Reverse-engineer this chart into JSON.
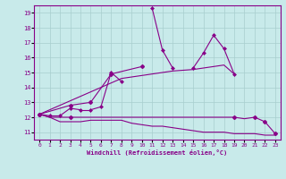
{
  "xlabel": "Windchill (Refroidissement éolien,°C)",
  "background_color": "#c8eaea",
  "grid_color": "#a8cece",
  "line_color": "#880088",
  "x_ticks": [
    0,
    1,
    2,
    3,
    4,
    5,
    6,
    7,
    8,
    9,
    10,
    11,
    12,
    13,
    14,
    15,
    16,
    17,
    18,
    19,
    20,
    21,
    22,
    23
  ],
  "y_ticks": [
    11,
    12,
    13,
    14,
    15,
    16,
    17,
    18,
    19
  ],
  "ylim": [
    10.5,
    19.5
  ],
  "xlim": [
    -0.5,
    23.5
  ],
  "series_main": [
    12.2,
    12.1,
    12.1,
    12.6,
    12.5,
    12.5,
    12.7,
    15.0,
    14.4,
    null,
    null,
    19.3,
    16.5,
    15.3,
    null,
    15.3,
    16.3,
    17.5,
    16.6,
    14.9,
    null,
    null,
    null,
    null
  ],
  "series_upper": [
    12.2,
    null,
    null,
    12.8,
    null,
    13.0,
    null,
    14.9,
    null,
    null,
    15.4,
    null,
    null,
    null,
    null,
    null,
    null,
    null,
    null,
    null,
    null,
    null,
    null,
    null
  ],
  "series_max_env": [
    null,
    null,
    null,
    null,
    null,
    null,
    null,
    null,
    null,
    null,
    null,
    null,
    null,
    null,
    null,
    null,
    17.0,
    17.5,
    null,
    null,
    null,
    null,
    null,
    null
  ],
  "series_trend_up": [
    12.2,
    12.5,
    12.8,
    13.1,
    13.4,
    13.7,
    14.0,
    14.3,
    14.6,
    14.7,
    14.8,
    14.9,
    15.0,
    15.1,
    15.15,
    15.2,
    15.3,
    15.4,
    15.5,
    14.9,
    null,
    null,
    null,
    null
  ],
  "series_trend_down": [
    12.2,
    12.0,
    11.7,
    11.7,
    11.7,
    11.8,
    11.8,
    11.8,
    11.8,
    11.6,
    11.5,
    11.4,
    11.4,
    11.3,
    11.2,
    11.1,
    11.0,
    11.0,
    11.0,
    10.9,
    10.9,
    10.9,
    10.8,
    10.8
  ],
  "series_mid": [
    12.2,
    12.0,
    12.0,
    12.0,
    12.0,
    12.0,
    12.0,
    12.0,
    12.0,
    12.0,
    12.0,
    12.0,
    12.0,
    12.0,
    12.0,
    12.0,
    12.0,
    12.0,
    12.0,
    12.0,
    11.9,
    12.0,
    11.7,
    10.9
  ]
}
